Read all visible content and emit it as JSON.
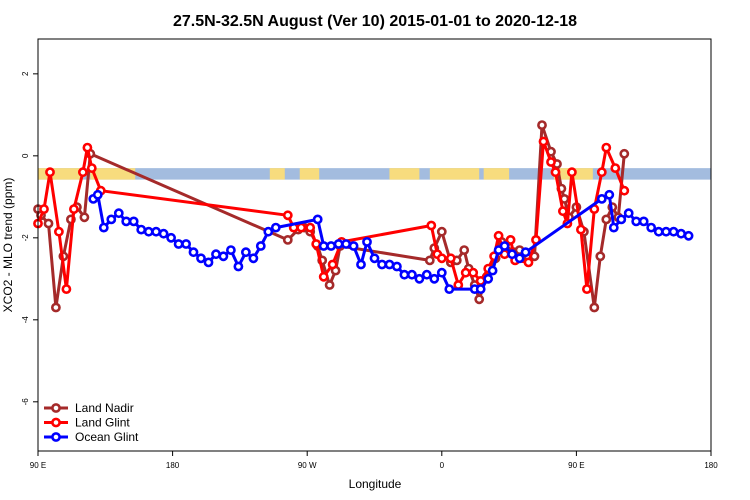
{
  "chart_data": {
    "type": "line",
    "title": "27.5N-32.5N August (Ver 10)   2015-01-01 to 2020-12-18",
    "xlabel": "Longitude",
    "ylabel": "XCO2 - MLO trend (ppm)",
    "xlim": [
      -90,
      360
    ],
    "ylim": [
      -7.2,
      2.85
    ],
    "x_ticks": [
      {
        "value": -90,
        "label": "90 E"
      },
      {
        "value": 0,
        "label": "180"
      },
      {
        "value": 90,
        "label": "90 W"
      },
      {
        "value": 180,
        "label": "0"
      },
      {
        "value": 270,
        "label": "90 E"
      },
      {
        "value": 360,
        "label": "180"
      }
    ],
    "y_ticks": [
      {
        "value": -6,
        "label": "-6"
      },
      {
        "value": -4,
        "label": "-4"
      },
      {
        "value": -2,
        "label": "-2"
      },
      {
        "value": 0,
        "label": "0"
      },
      {
        "value": 2,
        "label": "2"
      }
    ],
    "land_band": {
      "y_from": -0.58,
      "y_to": -0.3,
      "ocean_color": "#a3bcdf",
      "land_color": "#f7dc7e",
      "land_segments": [
        [
          -90,
          -60
        ],
        [
          -55,
          -25
        ],
        [
          65,
          75
        ],
        [
          85,
          98
        ],
        [
          145,
          165
        ],
        [
          172,
          205
        ],
        [
          208,
          225
        ],
        [
          255,
          281
        ]
      ]
    },
    "legend": {
      "position": "bottom-left",
      "entries": [
        "Land Nadir",
        "Land Glint",
        "Ocean Glint"
      ]
    },
    "series": [
      {
        "name": "Land Nadir",
        "color": "#a52a2a",
        "points": [
          [
            -90,
            -1.3
          ],
          [
            -88,
            -1.45
          ],
          [
            -83,
            -1.65
          ],
          [
            -78,
            -3.7
          ],
          [
            -73,
            -2.45
          ],
          [
            -68,
            -1.55
          ],
          [
            -64,
            -1.25
          ],
          [
            -59,
            -1.5
          ],
          [
            -55,
            0.05
          ],
          [
            77,
            -2.05
          ],
          [
            84,
            -1.8
          ],
          [
            88,
            -1.75
          ],
          [
            92,
            -1.85
          ],
          [
            97,
            -2.2
          ],
          [
            100,
            -2.55
          ],
          [
            105,
            -3.15
          ],
          [
            109,
            -2.8
          ],
          [
            112,
            -2.2
          ],
          [
            172,
            -2.55
          ],
          [
            175,
            -2.25
          ],
          [
            180,
            -1.85
          ],
          [
            186,
            -2.6
          ],
          [
            190,
            -2.55
          ],
          [
            195,
            -2.3
          ],
          [
            198,
            -2.75
          ],
          [
            202,
            -3.15
          ],
          [
            205,
            -3.5
          ],
          [
            210,
            -2.95
          ],
          [
            216,
            -2.5
          ],
          [
            220,
            -2.1
          ],
          [
            228,
            -2.35
          ],
          [
            232,
            -2.3
          ],
          [
            238,
            -2.5
          ],
          [
            242,
            -2.45
          ],
          [
            247,
            0.75
          ],
          [
            253,
            0.1
          ],
          [
            257,
            -0.2
          ],
          [
            260,
            -0.8
          ],
          [
            262,
            -1.05
          ],
          [
            265,
            -1.5
          ],
          [
            270,
            -1.25
          ],
          [
            275,
            -1.85
          ],
          [
            282,
            -3.7
          ],
          [
            286,
            -2.45
          ],
          [
            290,
            -1.55
          ],
          [
            294,
            -1.25
          ],
          [
            298,
            -1.5
          ],
          [
            302,
            0.05
          ]
        ]
      },
      {
        "name": "Land Glint",
        "color": "#ff0000",
        "points": [
          [
            -90,
            -1.65
          ],
          [
            -86,
            -1.3
          ],
          [
            -82,
            -0.4
          ],
          [
            -76,
            -1.85
          ],
          [
            -71,
            -3.25
          ],
          [
            -66,
            -1.3
          ],
          [
            -60,
            -0.4
          ],
          [
            -57,
            0.2
          ],
          [
            -54,
            -0.3
          ],
          [
            -48,
            -0.85
          ],
          [
            77,
            -1.45
          ],
          [
            81,
            -1.75
          ],
          [
            86,
            -1.75
          ],
          [
            92,
            -1.75
          ],
          [
            96,
            -2.15
          ],
          [
            101,
            -2.95
          ],
          [
            107,
            -2.65
          ],
          [
            113,
            -2.1
          ],
          [
            173,
            -1.7
          ],
          [
            177,
            -2.4
          ],
          [
            180,
            -2.5
          ],
          [
            186,
            -2.5
          ],
          [
            191,
            -3.15
          ],
          [
            196,
            -2.85
          ],
          [
            201,
            -2.85
          ],
          [
            206,
            -3.05
          ],
          [
            211,
            -2.75
          ],
          [
            215,
            -2.45
          ],
          [
            218,
            -1.95
          ],
          [
            222,
            -2.4
          ],
          [
            226,
            -2.05
          ],
          [
            229,
            -2.55
          ],
          [
            238,
            -2.6
          ],
          [
            243,
            -2.05
          ],
          [
            248,
            0.35
          ],
          [
            253,
            -0.15
          ],
          [
            256,
            -0.4
          ],
          [
            261,
            -1.35
          ],
          [
            264,
            -1.65
          ],
          [
            267,
            -0.4
          ],
          [
            273,
            -1.8
          ],
          [
            277,
            -3.25
          ],
          [
            282,
            -1.3
          ],
          [
            287,
            -0.4
          ],
          [
            290,
            0.2
          ],
          [
            296,
            -0.3
          ],
          [
            302,
            -0.85
          ]
        ]
      },
      {
        "name": "Ocean Glint",
        "color": "#0000ff",
        "points": [
          [
            -53,
            -1.05
          ],
          [
            -50,
            -0.95
          ],
          [
            -46,
            -1.75
          ],
          [
            -41,
            -1.55
          ],
          [
            -36,
            -1.4
          ],
          [
            -31,
            -1.6
          ],
          [
            -26,
            -1.6
          ],
          [
            -21,
            -1.8
          ],
          [
            -16,
            -1.85
          ],
          [
            -11,
            -1.85
          ],
          [
            -6,
            -1.9
          ],
          [
            -1,
            -2.0
          ],
          [
            4,
            -2.15
          ],
          [
            9,
            -2.15
          ],
          [
            14,
            -2.35
          ],
          [
            19,
            -2.5
          ],
          [
            24,
            -2.6
          ],
          [
            29,
            -2.4
          ],
          [
            34,
            -2.45
          ],
          [
            39,
            -2.3
          ],
          [
            44,
            -2.7
          ],
          [
            49,
            -2.35
          ],
          [
            54,
            -2.5
          ],
          [
            59,
            -2.2
          ],
          [
            64,
            -1.85
          ],
          [
            69,
            -1.75
          ],
          [
            97,
            -1.55
          ],
          [
            101,
            -2.2
          ],
          [
            106,
            -2.2
          ],
          [
            111,
            -2.15
          ],
          [
            116,
            -2.15
          ],
          [
            121,
            -2.2
          ],
          [
            126,
            -2.65
          ],
          [
            130,
            -2.1
          ],
          [
            135,
            -2.5
          ],
          [
            140,
            -2.65
          ],
          [
            145,
            -2.65
          ],
          [
            150,
            -2.7
          ],
          [
            155,
            -2.9
          ],
          [
            160,
            -2.9
          ],
          [
            165,
            -3.0
          ],
          [
            170,
            -2.9
          ],
          [
            175,
            -3.0
          ],
          [
            180,
            -2.85
          ],
          [
            185,
            -3.25
          ],
          [
            202,
            -3.25
          ],
          [
            206,
            -3.25
          ],
          [
            211,
            -3.0
          ],
          [
            214,
            -2.8
          ],
          [
            218,
            -2.3
          ],
          [
            222,
            -2.2
          ],
          [
            227,
            -2.4
          ],
          [
            232,
            -2.5
          ],
          [
            236,
            -2.35
          ],
          [
            287,
            -1.05
          ],
          [
            292,
            -0.95
          ],
          [
            295,
            -1.75
          ],
          [
            300,
            -1.55
          ],
          [
            305,
            -1.4
          ],
          [
            310,
            -1.6
          ],
          [
            315,
            -1.6
          ],
          [
            320,
            -1.75
          ],
          [
            325,
            -1.85
          ],
          [
            330,
            -1.85
          ],
          [
            335,
            -1.85
          ],
          [
            340,
            -1.9
          ],
          [
            345,
            -1.95
          ]
        ]
      }
    ]
  }
}
